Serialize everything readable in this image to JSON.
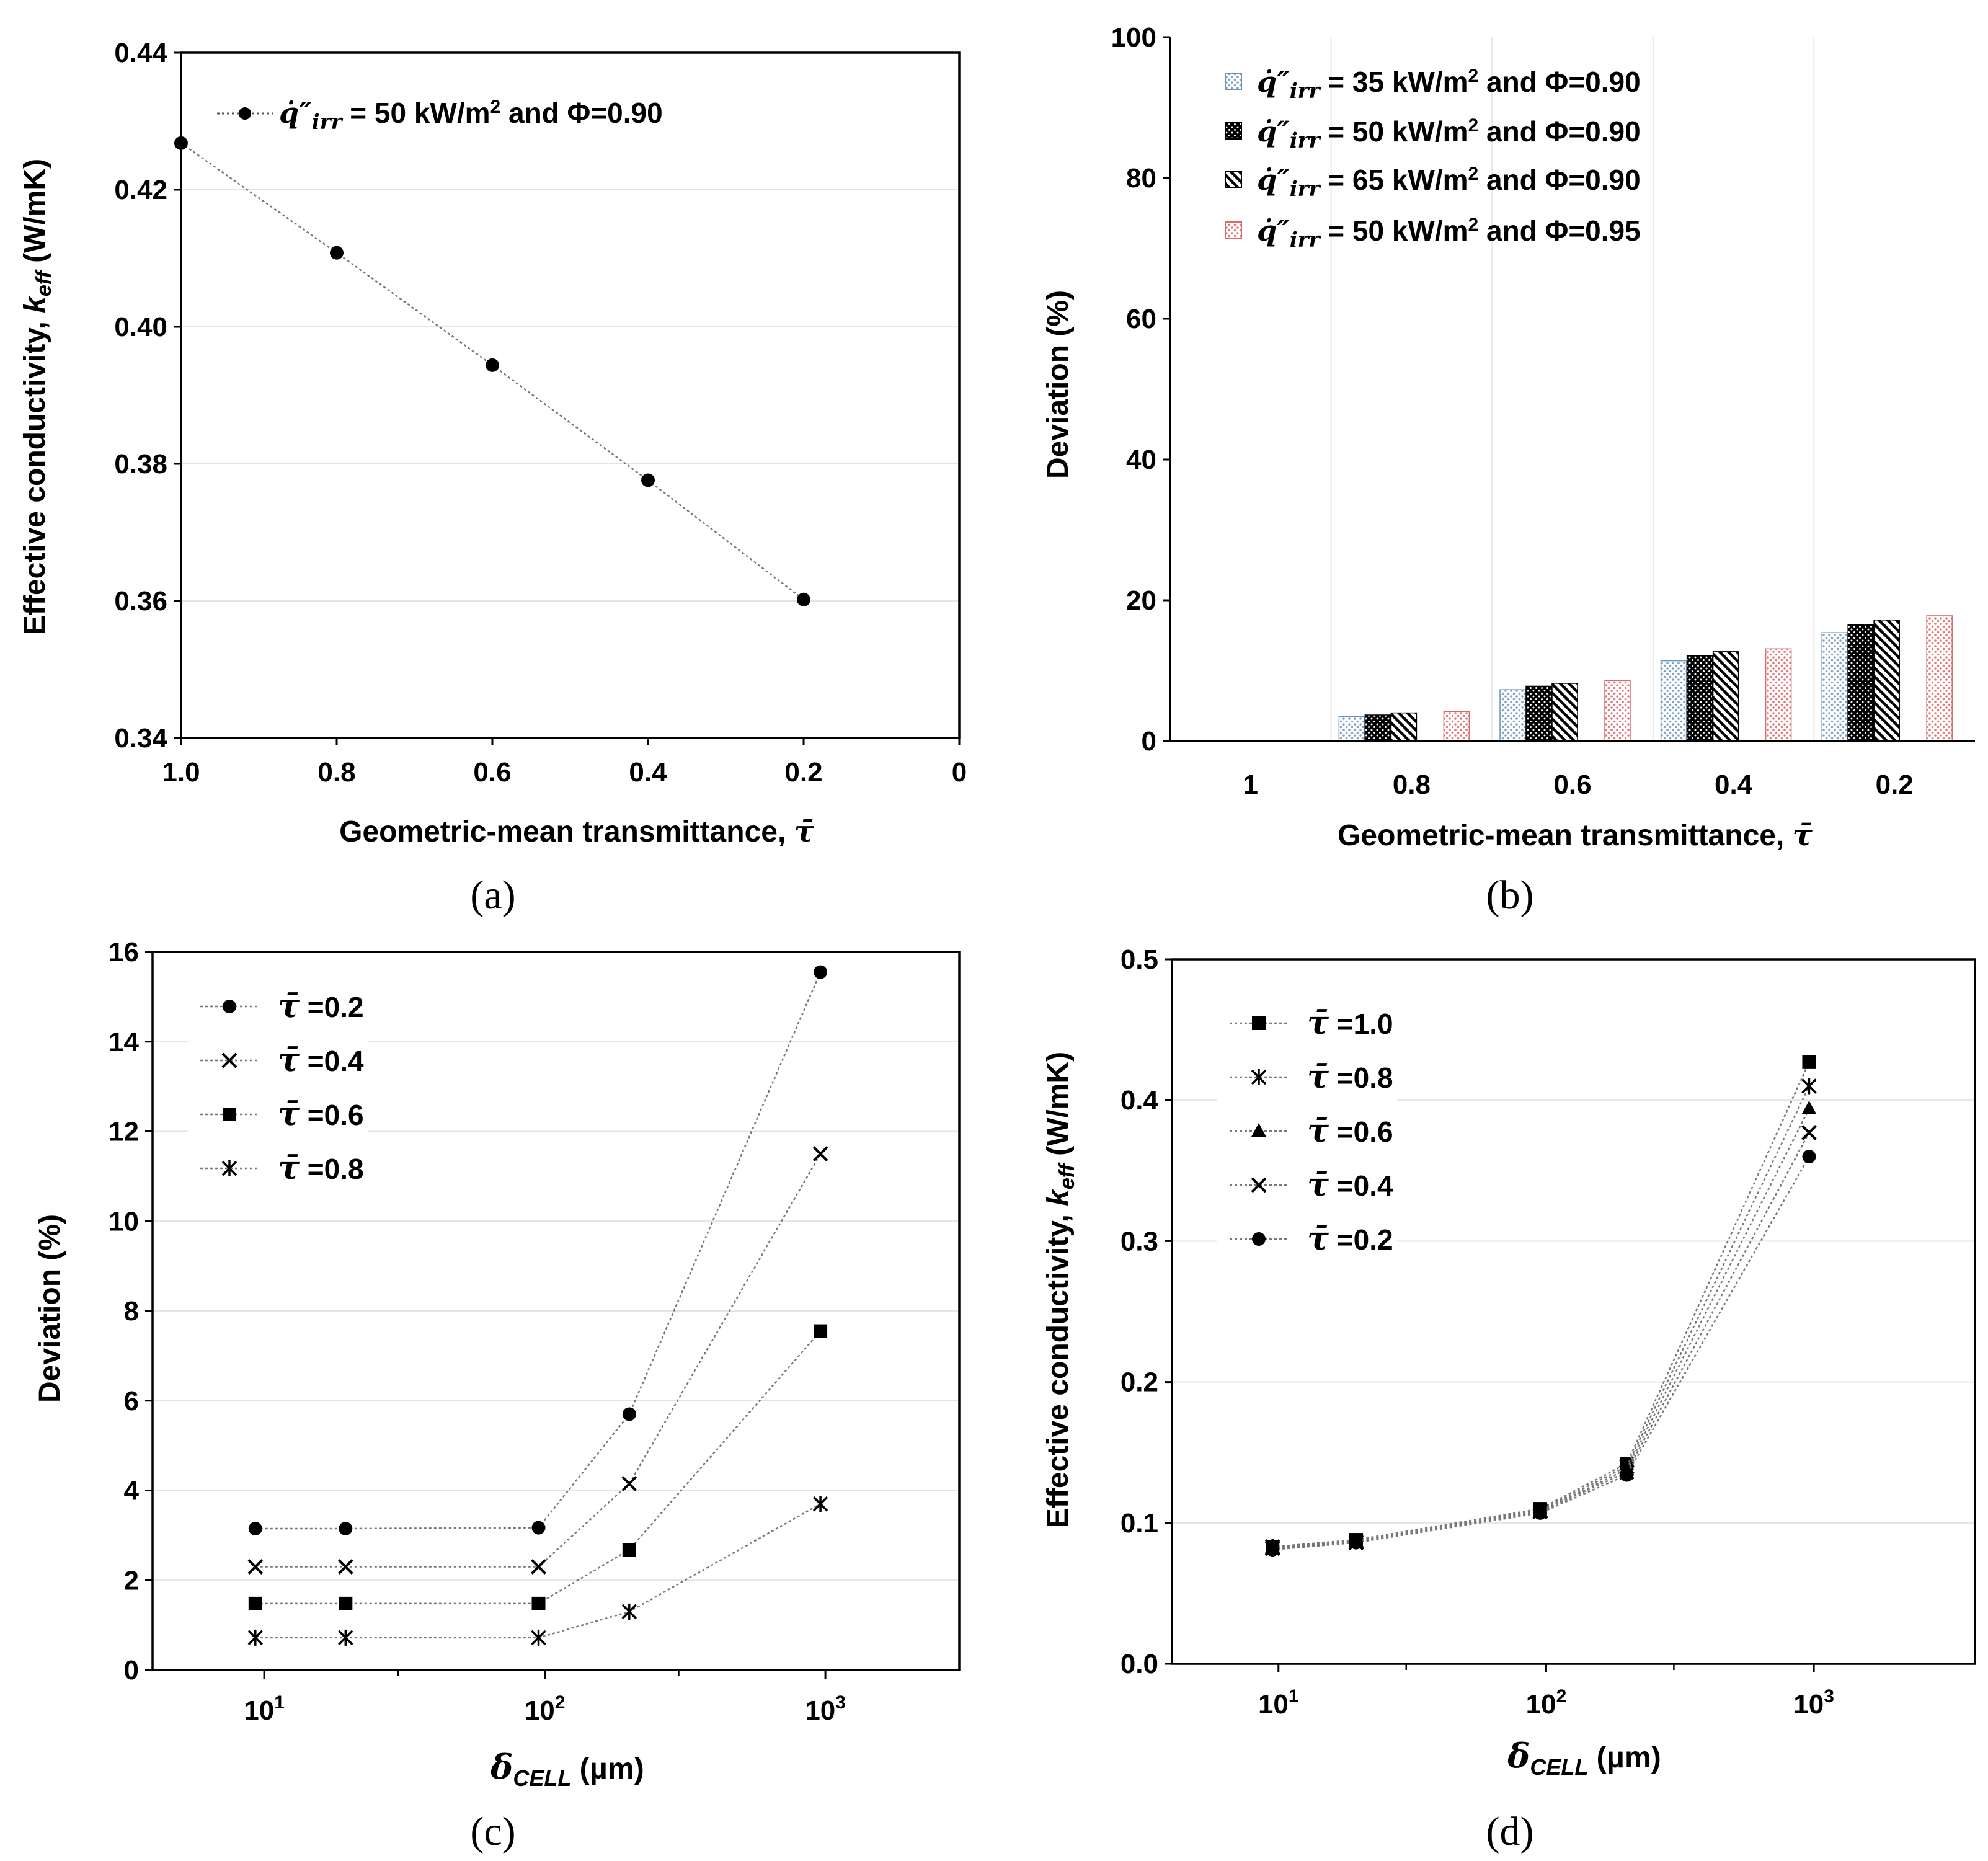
{
  "chart_data": [
    {
      "panel": "(a)",
      "type": "line",
      "xlabel": "Geometric-mean transmittance, τ̄",
      "ylabel": "Effective conductivity, k",
      "ylabel_sub": "eff",
      "ylabel_unit": "(W/mK)",
      "xlim": [
        1.0,
        0
      ],
      "ylim": [
        0.34,
        0.44
      ],
      "xticks": [
        "1.0",
        "0.8",
        "0.6",
        "0.4",
        "0.2",
        "0"
      ],
      "yticks": [
        "0.34",
        "0.36",
        "0.38",
        "0.40",
        "0.42",
        "0.44"
      ],
      "grid": "horizontal",
      "legend": "top-left",
      "series": [
        {
          "name": "q̇″irr = 50 kW/m² and Φ=0.90",
          "marker": "circle",
          "x": [
            1.0,
            0.8,
            0.6,
            0.4,
            0.2
          ],
          "y": [
            0.4268,
            0.4108,
            0.3944,
            0.3776,
            0.3602
          ]
        }
      ]
    },
    {
      "panel": "(b)",
      "type": "bar",
      "xlabel": "Geometric-mean transmittance, τ̄",
      "ylabel": "Deviation (%)",
      "ylim": [
        0,
        100
      ],
      "yticks": [
        "0",
        "20",
        "40",
        "60",
        "80",
        "100"
      ],
      "categories": [
        "1",
        "0.8",
        "0.6",
        "0.4",
        "0.2"
      ],
      "grid": "vertical-category-separators",
      "legend": "top-left",
      "series": [
        {
          "name": "q̇″irr = 35 kW/m² and Φ=0.90",
          "pattern": "blue-dots",
          "values": [
            0,
            3.5,
            7.3,
            11.4,
            15.4
          ]
        },
        {
          "name": "q̇″irr = 50 kW/m² and Φ=0.90",
          "pattern": "black-dots",
          "values": [
            0,
            3.7,
            7.8,
            12.1,
            16.5
          ]
        },
        {
          "name": "q̇″irr = 65 kW/m² and Φ=0.90",
          "pattern": "diagonal-hatch",
          "values": [
            0,
            4.0,
            8.2,
            12.7,
            17.2
          ]
        },
        {
          "name": "q̇″irr = 50 kW/m² and Φ=0.95",
          "pattern": "red-dots",
          "values": [
            0,
            4.2,
            8.6,
            13.1,
            17.8
          ]
        }
      ]
    },
    {
      "panel": "(c)",
      "type": "line",
      "xlabel": "δ",
      "xlabel_sub": "CELL",
      "xlabel_unit": "(μm)",
      "ylabel": "Deviation (%)",
      "xscale": "log",
      "xlim": [
        4,
        3000
      ],
      "ylim": [
        0,
        16
      ],
      "yticks": [
        "0",
        "2",
        "4",
        "6",
        "8",
        "10",
        "12",
        "14",
        "16"
      ],
      "xtick_major": [
        10,
        100,
        1000
      ],
      "grid": "horizontal",
      "legend": "top-left",
      "series": [
        {
          "name": "τ̄ =0.2",
          "marker": "circle",
          "x": [
            9.3,
            19.5,
            95,
            200,
            960
          ],
          "y": [
            3.15,
            3.15,
            3.17,
            5.7,
            15.55
          ]
        },
        {
          "name": "τ̄ =0.4",
          "marker": "x",
          "x": [
            9.3,
            19.5,
            95,
            200,
            960
          ],
          "y": [
            2.3,
            2.3,
            2.3,
            4.15,
            11.5
          ]
        },
        {
          "name": "τ̄ =0.6",
          "marker": "square",
          "x": [
            9.3,
            19.5,
            95,
            200,
            960
          ],
          "y": [
            1.48,
            1.48,
            1.48,
            2.68,
            7.55
          ]
        },
        {
          "name": "τ̄ =0.8",
          "marker": "asterisk",
          "x": [
            9.3,
            19.5,
            95,
            200,
            960
          ],
          "y": [
            0.72,
            0.72,
            0.72,
            1.3,
            3.7
          ]
        }
      ]
    },
    {
      "panel": "(d)",
      "type": "line",
      "xlabel": "δ",
      "xlabel_sub": "CELL",
      "xlabel_unit": "(μm)",
      "ylabel": "Effective conductivity, k",
      "ylabel_sub": "eff",
      "ylabel_unit": "(W/mK)",
      "xscale": "log",
      "xlim": [
        4,
        4000
      ],
      "ylim": [
        0.0,
        0.5
      ],
      "yticks": [
        "0.0",
        "0.1",
        "0.2",
        "0.3",
        "0.4",
        "0.5"
      ],
      "xtick_major": [
        10,
        100,
        1000
      ],
      "grid": "horizontal",
      "legend": "top-left",
      "series": [
        {
          "name": "τ̄ =1.0",
          "marker": "square",
          "x": [
            9.5,
            19.5,
            95,
            200,
            960
          ],
          "y": [
            0.083,
            0.088,
            0.11,
            0.142,
            0.427
          ]
        },
        {
          "name": "τ̄ =0.8",
          "marker": "asterisk",
          "x": [
            9.5,
            19.5,
            95,
            200,
            960
          ],
          "y": [
            0.083,
            0.087,
            0.109,
            0.14,
            0.41
          ]
        },
        {
          "name": "τ̄ =0.6",
          "marker": "triangle",
          "x": [
            9.5,
            19.5,
            95,
            200,
            960
          ],
          "y": [
            0.082,
            0.087,
            0.108,
            0.138,
            0.394
          ]
        },
        {
          "name": "τ̄ =0.4",
          "marker": "x",
          "x": [
            9.5,
            19.5,
            95,
            200,
            960
          ],
          "y": [
            0.082,
            0.086,
            0.108,
            0.136,
            0.377
          ]
        },
        {
          "name": "τ̄ =0.2",
          "marker": "circle",
          "x": [
            9.5,
            19.5,
            95,
            200,
            960
          ],
          "y": [
            0.081,
            0.086,
            0.107,
            0.134,
            0.36
          ]
        }
      ]
    }
  ]
}
